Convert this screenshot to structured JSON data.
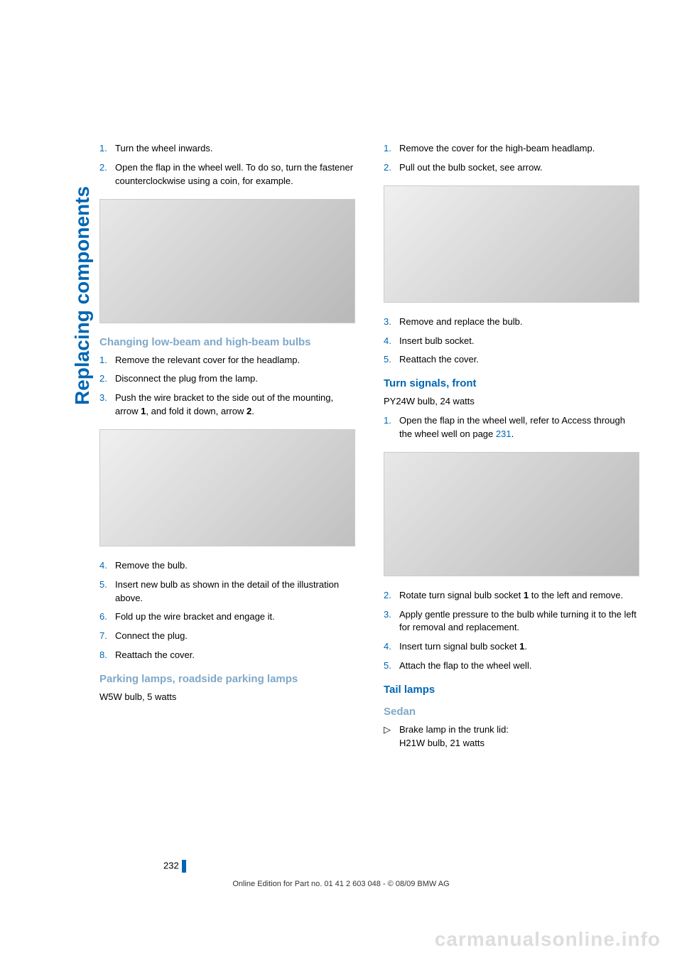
{
  "sidebar_title": "Replacing components",
  "left_column": {
    "intro_steps": [
      {
        "num": "1.",
        "text": "Turn the wheel inwards."
      },
      {
        "num": "2.",
        "text": "Open the flap in the wheel well. To do so, turn the fastener counterclockwise using a coin, for example."
      }
    ],
    "heading1": "Changing low-beam and high-beam bulbs",
    "steps1": [
      {
        "num": "1.",
        "text": "Remove the relevant cover for the headlamp."
      },
      {
        "num": "2.",
        "text": "Disconnect the plug from the lamp."
      },
      {
        "num": "3.",
        "text": "Push the wire bracket to the side out of the mounting, arrow ",
        "bold1": "1",
        "text2": ", and fold it down, arrow ",
        "bold2": "2",
        "text3": "."
      }
    ],
    "steps2": [
      {
        "num": "4.",
        "text": "Remove the bulb."
      },
      {
        "num": "5.",
        "text": "Insert new bulb as shown in the detail of the illustration above."
      },
      {
        "num": "6.",
        "text": "Fold up the wire bracket and engage it."
      },
      {
        "num": "7.",
        "text": "Connect the plug."
      },
      {
        "num": "8.",
        "text": "Reattach the cover."
      }
    ],
    "heading2": "Parking lamps, roadside parking lamps",
    "body1": "W5W bulb, 5 watts"
  },
  "right_column": {
    "steps1": [
      {
        "num": "1.",
        "text": "Remove the cover for the high-beam headlamp."
      },
      {
        "num": "2.",
        "text": "Pull out the bulb socket, see arrow."
      }
    ],
    "steps2": [
      {
        "num": "3.",
        "text": "Remove and replace the bulb."
      },
      {
        "num": "4.",
        "text": "Insert bulb socket."
      },
      {
        "num": "5.",
        "text": "Reattach the cover."
      }
    ],
    "heading1": "Turn signals, front",
    "body1": "PY24W bulb, 24 watts",
    "steps3_prefix": "Open the flap in the wheel well, refer to Access through the wheel well on page ",
    "steps3_link": "231",
    "steps3_suffix": ".",
    "steps3_num": "1.",
    "steps4": [
      {
        "num": "2.",
        "text": "Rotate turn signal bulb socket ",
        "bold1": "1",
        "text2": " to the left and remove."
      },
      {
        "num": "3.",
        "text": "Apply gentle pressure to the bulb while turning it to the left for removal and replacement."
      },
      {
        "num": "4.",
        "text": "Insert turn signal bulb socket ",
        "bold1": "1",
        "text2": "."
      },
      {
        "num": "5.",
        "text": "Attach the flap to the wheel well."
      }
    ],
    "heading2": "Tail lamps",
    "heading3": "Sedan",
    "bullet1": "Brake lamp in the trunk lid:\nH21W bulb, 21 watts"
  },
  "page_number": "232",
  "footer": "Online Edition for Part no. 01 41 2 603 048 - © 08/09 BMW AG",
  "watermark": "carmanualsonline.info"
}
